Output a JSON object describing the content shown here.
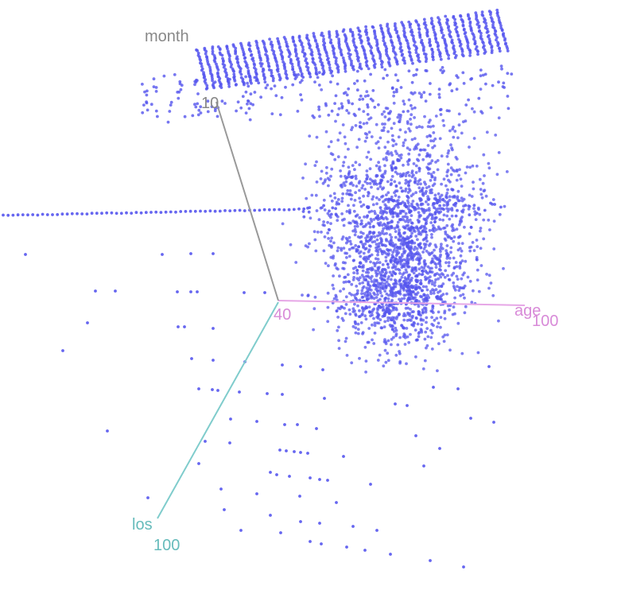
{
  "chart_data": {
    "type": "scatter",
    "dimensions": 3,
    "background": "#ffffff",
    "point_color": "#5555ee",
    "axes": {
      "x": {
        "label": "age",
        "tick_start": "40",
        "tick_end": "100",
        "range": [
          40,
          100
        ],
        "color": "#cc77cc"
      },
      "y": {
        "label": "los",
        "tick_end": "100",
        "range": [
          0,
          100
        ],
        "color": "#66bbbb"
      },
      "z": {
        "label": "month",
        "tick_end": "10",
        "range": [
          0,
          12
        ],
        "color": "#888888"
      }
    },
    "grid": false,
    "legend": "none"
  }
}
